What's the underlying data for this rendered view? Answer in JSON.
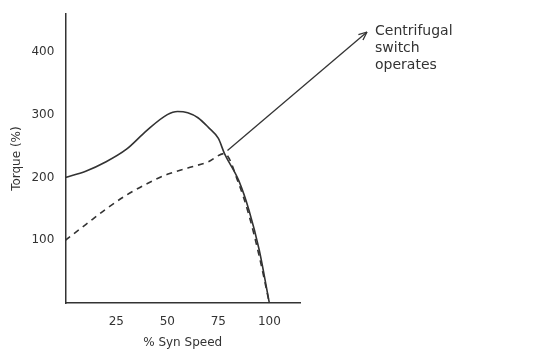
{
  "chart_data": {
    "type": "line",
    "y_label": "Torque (%)",
    "x_label": "% Syn Speed",
    "xlim": [
      0,
      115
    ],
    "xticks": [
      25,
      50,
      75,
      100
    ],
    "ylim": [
      0,
      460
    ],
    "yticks": [
      100,
      200,
      300,
      400
    ],
    "grid": false,
    "series": [
      {
        "color": "#333333",
        "line_style": "solid",
        "x": [
          0,
          10,
          20,
          30,
          40,
          50,
          55,
          60,
          65,
          70,
          75,
          78,
          85,
          90,
          95,
          100
        ],
        "values": [
          200,
          210,
          225,
          245,
          275,
          300,
          305,
          303,
          295,
          280,
          262,
          238,
          195,
          148,
          85,
          0
        ]
      },
      {
        "color": "#333333",
        "line_style": "dashed",
        "x": [
          0,
          10,
          20,
          30,
          40,
          50,
          60,
          70,
          78,
          85,
          90,
          95,
          100
        ],
        "values": [
          100,
          125,
          150,
          172,
          190,
          205,
          215,
          225,
          238,
          190,
          140,
          75,
          0
        ]
      }
    ],
    "annotations": [
      {
        "text": "Centrifugal switch operates",
        "x": 78,
        "y": 238
      }
    ]
  }
}
